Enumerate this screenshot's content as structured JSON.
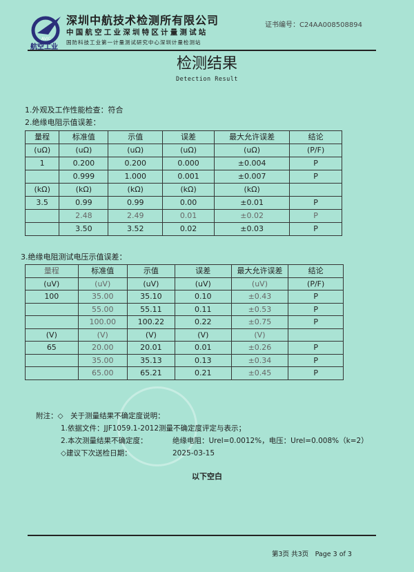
{
  "header": {
    "logo_text": "航空工业",
    "logo_mark": "AVIC",
    "company_name": "深圳中航技术检测所有限公司",
    "company_line2": "中国航空工业深圳特区计量测试站",
    "company_line3": "国防科技工业第一计量测试研究中心深圳计量检测站",
    "certificate_no": "证书编号：C24AA008508894"
  },
  "title": "检测结果",
  "subtitle": "Detection Result",
  "section1": "1.外观及工作性能检查：符合",
  "section2": "2.绝缘电阻示值误差：",
  "table1": {
    "headers": [
      "量程",
      "标准值",
      "示值",
      "误差",
      "最大允许误差",
      "结论"
    ],
    "rows": [
      [
        "(uΩ)",
        "(uΩ)",
        "(uΩ)",
        "(uΩ)",
        "(uΩ)",
        "(P/F)"
      ],
      [
        "1",
        "0.200",
        "0.200",
        "0.000",
        "±0.004",
        "P"
      ],
      [
        "",
        "0.999",
        "1.000",
        "0.001",
        "±0.007",
        "P"
      ],
      [
        "(kΩ)",
        "(kΩ)",
        "(kΩ)",
        "(kΩ)",
        "(kΩ)",
        ""
      ],
      [
        "3.5",
        "0.99",
        "0.99",
        "0.00",
        "±0.01",
        "P"
      ],
      [
        "",
        "2.48",
        "2.49",
        "0.01",
        "±0.02",
        "P"
      ],
      [
        "",
        "3.50",
        "3.52",
        "0.02",
        "±0.03",
        "P"
      ]
    ]
  },
  "section3": "3.绝缘电阻测试电压示值误差：",
  "table2": {
    "headers": [
      "量程",
      "标准值",
      "示值",
      "误差",
      "最大允许误差",
      "结论"
    ],
    "rows": [
      [
        "(uV)",
        "(uV)",
        "(uV)",
        "(uV)",
        "(uV)",
        "(P/F)"
      ],
      [
        "100",
        "35.00",
        "35.10",
        "0.10",
        "±0.43",
        "P"
      ],
      [
        "",
        "55.00",
        "55.11",
        "0.11",
        "±0.53",
        "P"
      ],
      [
        "",
        "100.00",
        "100.22",
        "0.22",
        "±0.75",
        "P"
      ],
      [
        "(V)",
        "(V)",
        "(V)",
        "(V)",
        "(V)",
        ""
      ],
      [
        "65",
        "20.00",
        "20.01",
        "0.01",
        "±0.26",
        "P"
      ],
      [
        "",
        "35.00",
        "35.13",
        "0.13",
        "±0.34",
        "P"
      ],
      [
        "",
        "65.00",
        "65.21",
        "0.21",
        "±0.45",
        "P"
      ]
    ]
  },
  "notes": {
    "heading": "附注：◇　关于测量结果不确定度说明：",
    "item1": "1.依据文件：JJF1059.1-2012测量不确定度评定与表示；",
    "item2_label": "2.本次测量结果不确定度：",
    "item2_value": "绝缘电阻：Urel=0.0012%，电压：Urel=0.008%（k=2）",
    "next_date_label": "◇建议下次送检日期：",
    "next_date": "2025-03-15"
  },
  "blank_note": "以下空白",
  "footer": {
    "page": "第3页 共3页　Page 3 of 3"
  },
  "colors": {
    "background": "#aae3d4",
    "logo": "#2a2f7a"
  }
}
